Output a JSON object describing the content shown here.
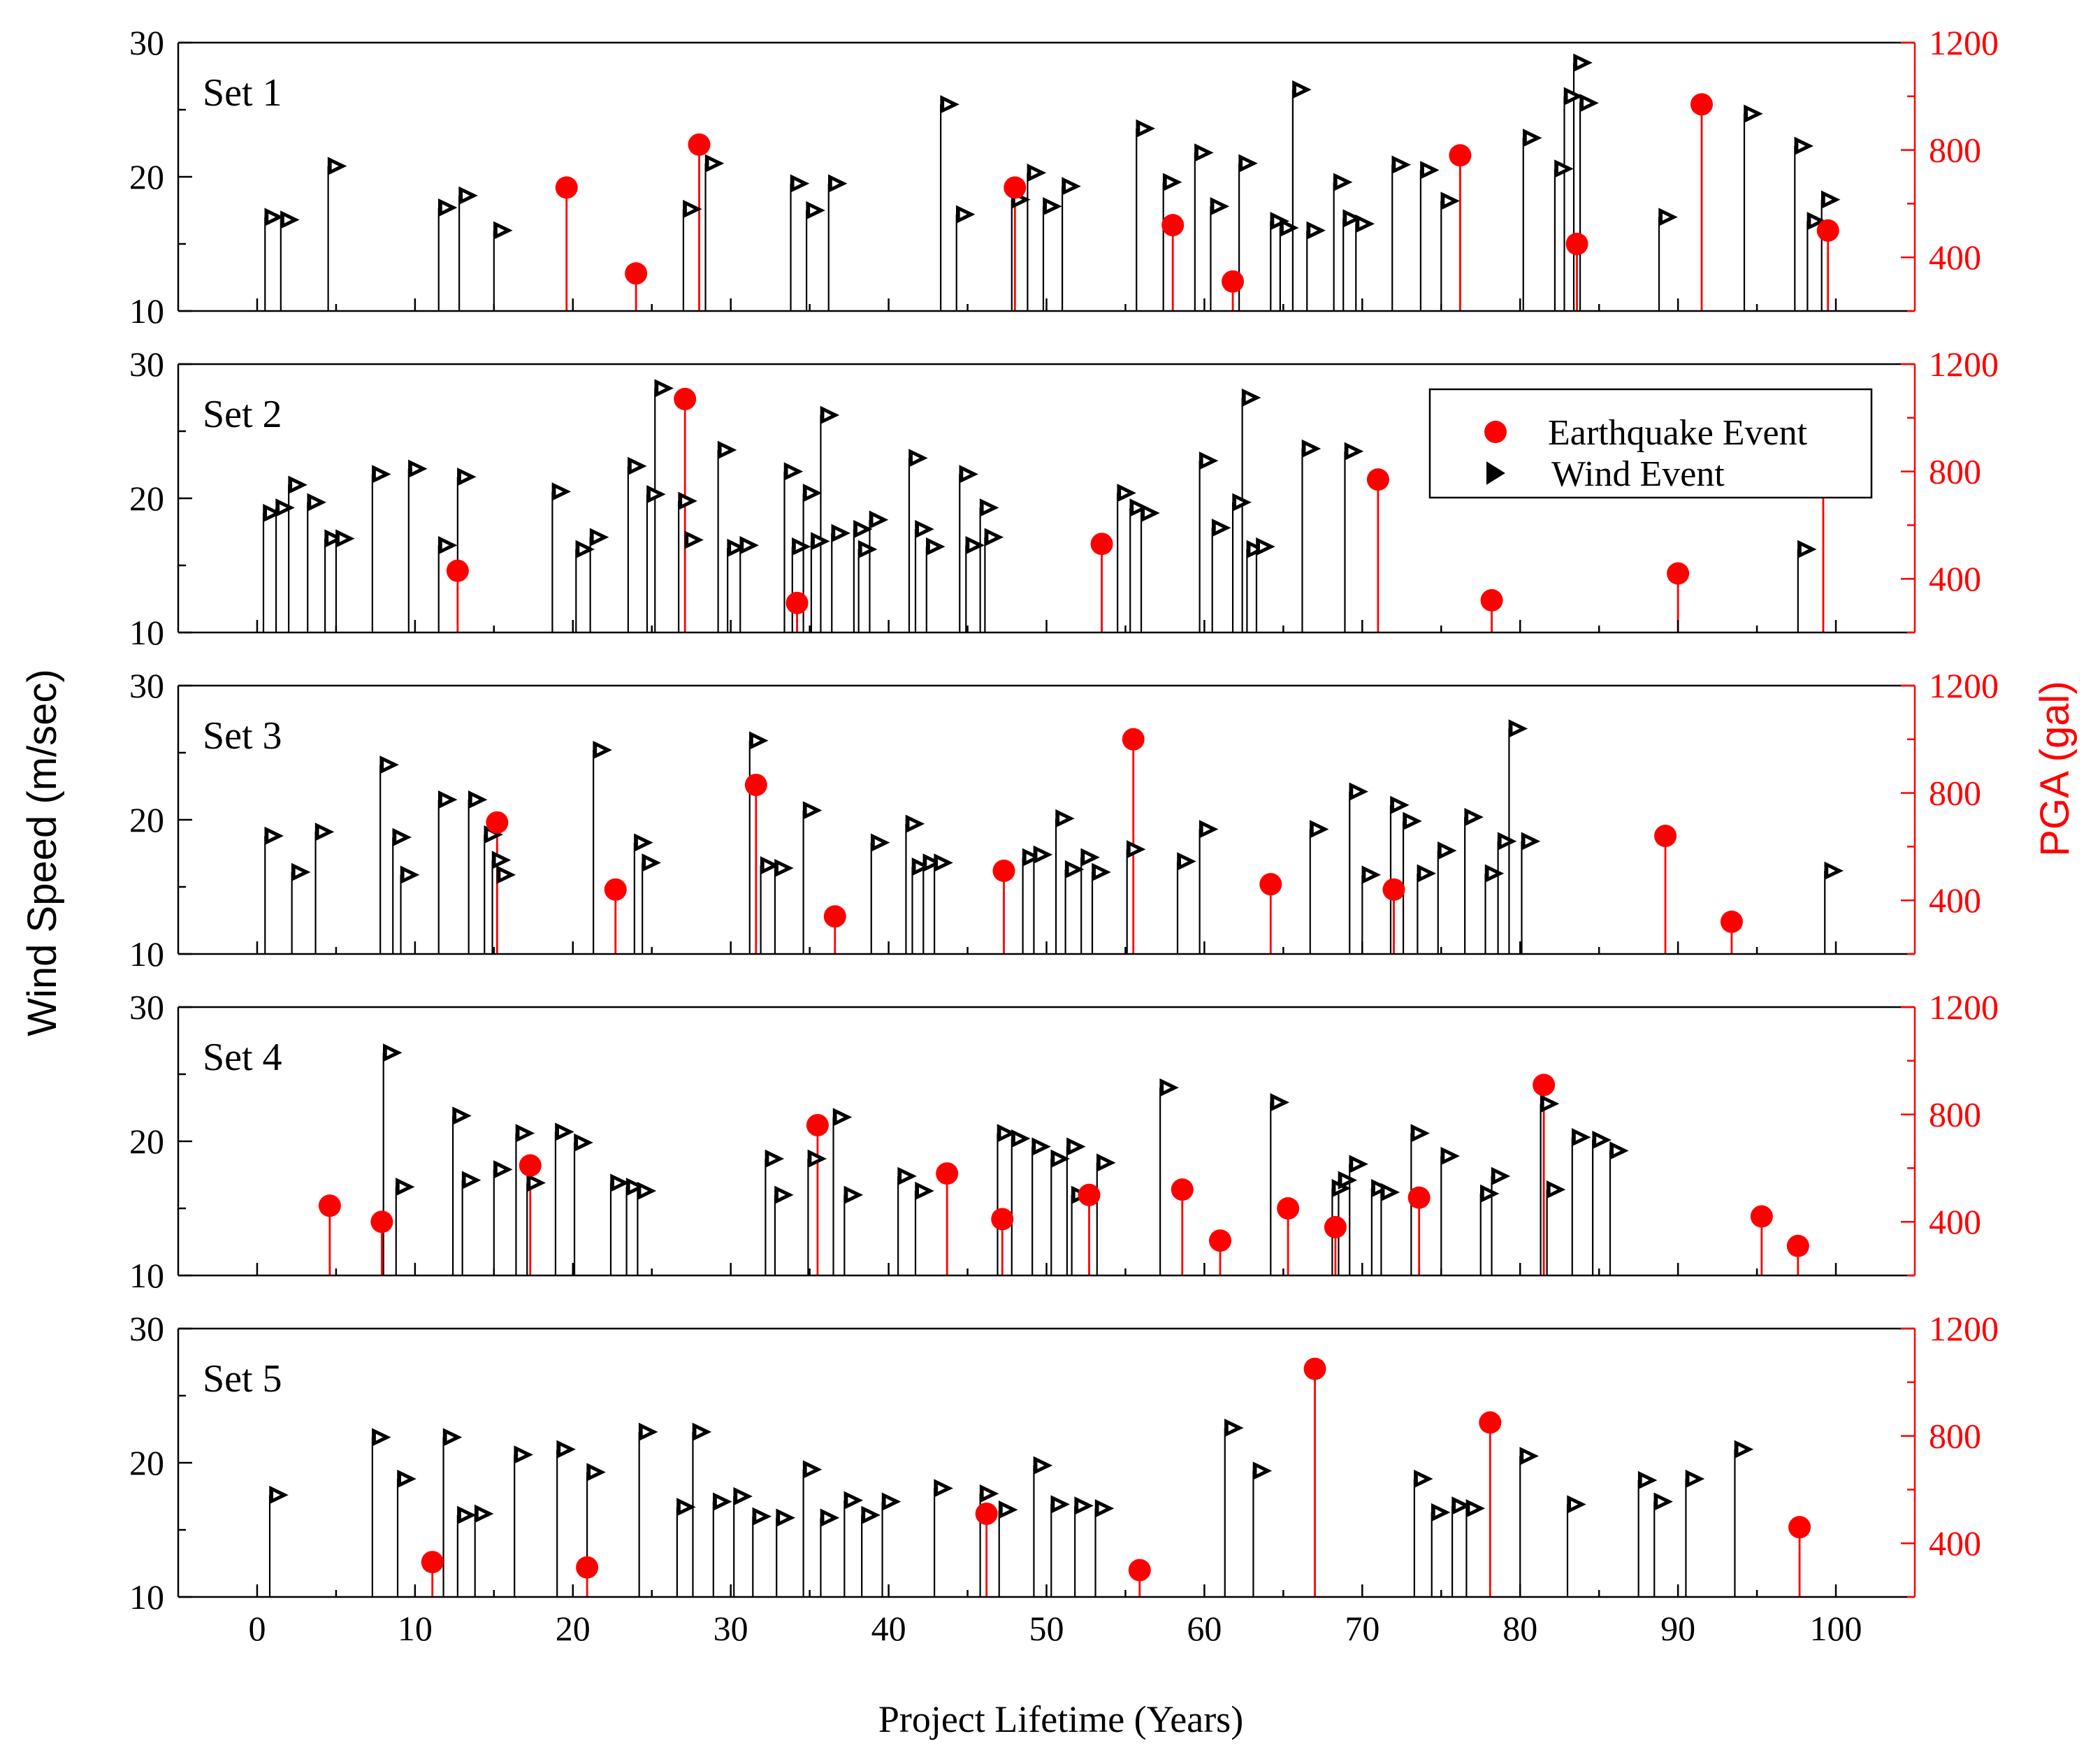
{
  "figure": {
    "left_axis_label": "Wind Speed (m/sec)",
    "right_axis_label": "PGA (gal)",
    "x_axis_label": "Project Lifetime (Years)",
    "legend": {
      "earthquake_label": "Earthquake Event",
      "wind_label": "Wind Event"
    },
    "colors": {
      "earthquake": "#ff0000",
      "wind": "#000000",
      "right_axis": "#ff0000"
    }
  },
  "chart_data": {
    "type": "scatter",
    "x_range": [
      -5,
      105
    ],
    "x_ticks": [
      0,
      10,
      20,
      30,
      40,
      50,
      60,
      70,
      80,
      90,
      100
    ],
    "y_range": [
      10,
      30
    ],
    "y_ticks": [
      10,
      20,
      30
    ],
    "y2_range": [
      200,
      1200
    ],
    "y2_ticks": [
      400,
      800,
      1200
    ],
    "grid": false,
    "legend_location": "panel 2, top-right",
    "panels": [
      {
        "title": "Set 1",
        "wind": [
          [
            0.5,
            17
          ],
          [
            1.5,
            16.8
          ],
          [
            4.5,
            20.8
          ],
          [
            11.5,
            17.7
          ],
          [
            12.8,
            18.6
          ],
          [
            15,
            16
          ],
          [
            27,
            17.6
          ],
          [
            28.4,
            21
          ],
          [
            33.8,
            19.5
          ],
          [
            34.8,
            17.5
          ],
          [
            36.2,
            19.5
          ],
          [
            43.3,
            25.4
          ],
          [
            44.3,
            17.2
          ],
          [
            47.8,
            18.3
          ],
          [
            48.8,
            20.3
          ],
          [
            49.8,
            17.8
          ],
          [
            51,
            19.3
          ],
          [
            55.7,
            23.6
          ],
          [
            57.4,
            19.6
          ],
          [
            59.4,
            21.8
          ],
          [
            60.4,
            17.8
          ],
          [
            62.2,
            21
          ],
          [
            64.2,
            16.7
          ],
          [
            64.8,
            16.2
          ],
          [
            65.6,
            26.5
          ],
          [
            66.5,
            16
          ],
          [
            68.2,
            19.6
          ],
          [
            68.8,
            16.9
          ],
          [
            69.6,
            16.5
          ],
          [
            71.9,
            20.9
          ],
          [
            73.7,
            20.5
          ],
          [
            75,
            18.2
          ],
          [
            80.2,
            22.9
          ],
          [
            82.2,
            20.6
          ],
          [
            82.8,
            26
          ],
          [
            83.4,
            28.5
          ],
          [
            83.8,
            25.5
          ],
          [
            88.8,
            17
          ],
          [
            94.2,
            24.7
          ],
          [
            97.4,
            22.3
          ],
          [
            98.2,
            16.7
          ],
          [
            99.1,
            18.3
          ]
        ],
        "earthquake": [
          [
            19.6,
            660
          ],
          [
            24,
            340
          ],
          [
            28,
            820
          ],
          [
            48,
            660
          ],
          [
            58,
            520
          ],
          [
            61.8,
            310
          ],
          [
            76.2,
            780
          ],
          [
            83.6,
            450
          ],
          [
            91.5,
            970
          ],
          [
            99.5,
            500
          ]
        ]
      },
      {
        "title": "Set 2",
        "wind": [
          [
            0.4,
            18.9
          ],
          [
            1.2,
            19.3
          ],
          [
            2,
            21
          ],
          [
            3.2,
            19.7
          ],
          [
            4.3,
            17
          ],
          [
            5,
            17
          ],
          [
            7.3,
            21.8
          ],
          [
            9.6,
            22.2
          ],
          [
            11.5,
            16.5
          ],
          [
            12.7,
            21.6
          ],
          [
            18.7,
            20.5
          ],
          [
            20.2,
            16.2
          ],
          [
            21.1,
            17.1
          ],
          [
            23.5,
            22.4
          ],
          [
            24.7,
            20.3
          ],
          [
            25.2,
            28.2
          ],
          [
            26.7,
            19.8
          ],
          [
            27.1,
            16.9
          ],
          [
            29.2,
            23.6
          ],
          [
            29.8,
            16.3
          ],
          [
            30.6,
            16.5
          ],
          [
            33.4,
            22
          ],
          [
            33.9,
            16.4
          ],
          [
            34.6,
            20.4
          ],
          [
            35.1,
            16.8
          ],
          [
            35.7,
            26.2
          ],
          [
            36.4,
            17.4
          ],
          [
            37.8,
            17.7
          ],
          [
            38.1,
            16.2
          ],
          [
            38.8,
            18.4
          ],
          [
            41.3,
            23
          ],
          [
            41.7,
            17.7
          ],
          [
            42.4,
            16.4
          ],
          [
            44.5,
            21.8
          ],
          [
            44.9,
            16.5
          ],
          [
            45.8,
            19.3
          ],
          [
            46.1,
            17.1
          ],
          [
            54.5,
            20.4
          ],
          [
            55.3,
            19.3
          ],
          [
            56,
            18.9
          ],
          [
            59.7,
            22.8
          ],
          [
            60.5,
            17.8
          ],
          [
            61.8,
            19.7
          ],
          [
            62.4,
            27.5
          ],
          [
            62.7,
            16.2
          ],
          [
            63.3,
            16.4
          ],
          [
            66.2,
            23.7
          ],
          [
            68.9,
            23.5
          ],
          [
            97.6,
            16.2
          ]
        ],
        "earthquake": [
          [
            12.7,
            430
          ],
          [
            27.1,
            1070
          ],
          [
            34.2,
            310
          ],
          [
            53.5,
            530
          ],
          [
            71,
            770
          ],
          [
            78.2,
            320
          ],
          [
            90,
            420
          ],
          [
            99.2,
            870
          ]
        ]
      },
      {
        "title": "Set 3",
        "wind": [
          [
            0.5,
            18.8
          ],
          [
            2.2,
            16.1
          ],
          [
            3.7,
            19.1
          ],
          [
            7.8,
            24.1
          ],
          [
            8.6,
            18.7
          ],
          [
            9.1,
            15.9
          ],
          [
            11.5,
            21.5
          ],
          [
            13.4,
            21.5
          ],
          [
            14.4,
            18.9
          ],
          [
            14.9,
            17
          ],
          [
            15.2,
            15.9
          ],
          [
            21.3,
            25.2
          ],
          [
            23.9,
            18.3
          ],
          [
            24.4,
            16.8
          ],
          [
            31.2,
            25.9
          ],
          [
            31.9,
            16.6
          ],
          [
            32.8,
            16.4
          ],
          [
            34.6,
            20.7
          ],
          [
            38.9,
            18.3
          ],
          [
            41.1,
            19.7
          ],
          [
            41.5,
            16.5
          ],
          [
            42.2,
            16.8
          ],
          [
            42.9,
            16.8
          ],
          [
            48.5,
            17.2
          ],
          [
            49.2,
            17.4
          ],
          [
            50.6,
            20.1
          ],
          [
            51.2,
            16.3
          ],
          [
            52.2,
            17.2
          ],
          [
            52.9,
            16.1
          ],
          [
            55.1,
            17.8
          ],
          [
            58.3,
            16.9
          ],
          [
            59.7,
            19.3
          ],
          [
            66.7,
            19.3
          ],
          [
            69.2,
            22.1
          ],
          [
            70,
            15.9
          ],
          [
            71.8,
            21.1
          ],
          [
            72.6,
            19.9
          ],
          [
            73.5,
            16
          ],
          [
            74.8,
            17.7
          ],
          [
            76.5,
            20.2
          ],
          [
            77.8,
            16
          ],
          [
            78.6,
            18.4
          ],
          [
            79.3,
            26.8
          ],
          [
            80.1,
            18.4
          ],
          [
            99.3,
            16.2
          ]
        ],
        "earthquake": [
          [
            15.2,
            690
          ],
          [
            22.7,
            440
          ],
          [
            31.6,
            830
          ],
          [
            36.6,
            340
          ],
          [
            47.3,
            510
          ],
          [
            55.5,
            1000
          ],
          [
            64.2,
            460
          ],
          [
            72,
            440
          ],
          [
            89.2,
            640
          ],
          [
            93.4,
            320
          ]
        ]
      },
      {
        "title": "Set 4",
        "wind": [
          [
            8,
            26.6
          ],
          [
            8.8,
            16.6
          ],
          [
            12.4,
            21.9
          ],
          [
            13,
            17.1
          ],
          [
            15,
            17.9
          ],
          [
            16.4,
            20.6
          ],
          [
            17.1,
            16.9
          ],
          [
            18.9,
            20.7
          ],
          [
            20.1,
            19.9
          ],
          [
            22.4,
            16.9
          ],
          [
            23.4,
            16.6
          ],
          [
            24.1,
            16.3
          ],
          [
            32.2,
            18.7
          ],
          [
            32.8,
            16
          ],
          [
            34.9,
            18.7
          ],
          [
            36.5,
            21.8
          ],
          [
            37.2,
            16
          ],
          [
            40.6,
            17.4
          ],
          [
            41.7,
            16.3
          ],
          [
            46.9,
            20.6
          ],
          [
            47.8,
            20.2
          ],
          [
            49.1,
            19.6
          ],
          [
            50.3,
            18.7
          ],
          [
            51.3,
            19.6
          ],
          [
            51.6,
            16
          ],
          [
            53.2,
            18.4
          ],
          [
            57.2,
            24
          ],
          [
            64.2,
            22.9
          ],
          [
            68.1,
            16.5
          ],
          [
            68.5,
            17.1
          ],
          [
            69.2,
            18.3
          ],
          [
            70.6,
            16.5
          ],
          [
            71.2,
            16.2
          ],
          [
            73.1,
            20.6
          ],
          [
            75,
            18.9
          ],
          [
            77.5,
            16.1
          ],
          [
            78.2,
            17.4
          ],
          [
            81.3,
            22.8
          ],
          [
            81.7,
            16.4
          ],
          [
            83.3,
            20.3
          ],
          [
            84.6,
            20.1
          ],
          [
            85.7,
            19.3
          ]
        ],
        "earthquake": [
          [
            4.6,
            460
          ],
          [
            7.9,
            400
          ],
          [
            17.3,
            610
          ],
          [
            35.5,
            760
          ],
          [
            43.7,
            580
          ],
          [
            47.2,
            410
          ],
          [
            52.7,
            500
          ],
          [
            58.6,
            520
          ],
          [
            61,
            330
          ],
          [
            65.3,
            450
          ],
          [
            68.3,
            380
          ],
          [
            73.6,
            490
          ],
          [
            81.5,
            910
          ],
          [
            95.3,
            420
          ],
          [
            97.6,
            310
          ]
        ]
      },
      {
        "title": "Set 5",
        "wind": [
          [
            0.8,
            17.6
          ],
          [
            7.3,
            21.9
          ],
          [
            8.9,
            18.8
          ],
          [
            11.8,
            21.9
          ],
          [
            12.7,
            16.1
          ],
          [
            13.8,
            16.2
          ],
          [
            16.3,
            20.6
          ],
          [
            19,
            21
          ],
          [
            20.9,
            19.3
          ],
          [
            24.2,
            22.3
          ],
          [
            26.6,
            16.7
          ],
          [
            27.6,
            22.3
          ],
          [
            28.9,
            17.1
          ],
          [
            30.2,
            17.5
          ],
          [
            31.4,
            16
          ],
          [
            32.9,
            15.9
          ],
          [
            34.6,
            19.5
          ],
          [
            35.7,
            15.9
          ],
          [
            37.2,
            17.2
          ],
          [
            38.3,
            16.1
          ],
          [
            39.6,
            17.1
          ],
          [
            42.9,
            18.1
          ],
          [
            45.8,
            17.7
          ],
          [
            47,
            16.5
          ],
          [
            49.2,
            19.8
          ],
          [
            50.3,
            16.9
          ],
          [
            51.8,
            16.8
          ],
          [
            53.1,
            16.6
          ],
          [
            61.3,
            22.6
          ],
          [
            63.1,
            19.4
          ],
          [
            73.3,
            18.8
          ],
          [
            74.4,
            16.3
          ],
          [
            75.7,
            16.8
          ],
          [
            76.6,
            16.6
          ],
          [
            80,
            20.5
          ],
          [
            83,
            16.9
          ],
          [
            87.5,
            18.7
          ],
          [
            88.5,
            17.1
          ],
          [
            90.5,
            18.8
          ],
          [
            93.6,
            21
          ]
        ],
        "earthquake": [
          [
            11.1,
            330
          ],
          [
            20.9,
            310
          ],
          [
            46.2,
            510
          ],
          [
            55.9,
            300
          ],
          [
            67,
            1050
          ],
          [
            78.1,
            850
          ],
          [
            97.7,
            460
          ]
        ]
      }
    ]
  }
}
